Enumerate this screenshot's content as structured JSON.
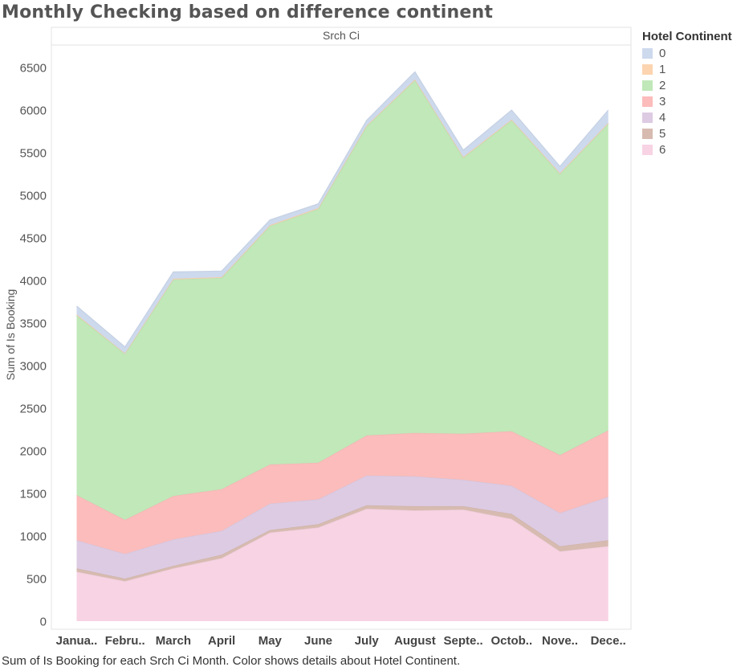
{
  "page_title": "Monthly Checking based on difference continent",
  "caption": "Sum of Is Booking for each Srch Ci Month.  Color shows details about Hotel Continent.",
  "chart_data": {
    "type": "area",
    "stacked": true,
    "title": "Monthly Checking based on difference continent",
    "column_header": "Srch Ci",
    "ylabel": "Sum of Is Booking",
    "xlabel": "",
    "ylim": [
      0,
      6800
    ],
    "yticks": [
      0,
      500,
      1000,
      1500,
      2000,
      2500,
      3000,
      3500,
      4000,
      4500,
      5000,
      5500,
      6000,
      6500
    ],
    "categories": [
      "Janua..",
      "Febru..",
      "March",
      "April",
      "May",
      "June",
      "July",
      "August",
      "Septe..",
      "Octob..",
      "Nove..",
      "Dece.."
    ],
    "legend_title": "Hotel Continent",
    "legend_position": "right",
    "grid": false,
    "series": [
      {
        "name": "6",
        "color": "#f7d3e3",
        "values": [
          580,
          470,
          620,
          740,
          1040,
          1100,
          1320,
          1300,
          1310,
          1200,
          820,
          880
        ]
      },
      {
        "name": "5",
        "color": "#d7bbb0",
        "values": [
          40,
          30,
          30,
          40,
          30,
          40,
          40,
          50,
          40,
          60,
          60,
          70
        ]
      },
      {
        "name": "4",
        "color": "#ddcbe3",
        "values": [
          330,
          290,
          310,
          280,
          310,
          290,
          350,
          350,
          310,
          330,
          390,
          510
        ]
      },
      {
        "name": "3",
        "color": "#fbbcbb",
        "values": [
          530,
          400,
          510,
          490,
          460,
          430,
          470,
          510,
          540,
          640,
          680,
          780
        ]
      },
      {
        "name": "2",
        "color": "#c0e8b8",
        "values": [
          2110,
          1950,
          2540,
          2480,
          2800,
          2980,
          3630,
          4140,
          3240,
          3650,
          3300,
          3600
        ]
      },
      {
        "name": "1",
        "color": "#fcd4b0",
        "values": [
          10,
          5,
          10,
          10,
          10,
          10,
          10,
          10,
          10,
          10,
          10,
          10
        ]
      },
      {
        "name": "0",
        "color": "#cdd9ed",
        "values": [
          100,
          75,
          80,
          70,
          60,
          50,
          60,
          90,
          80,
          110,
          80,
          150
        ]
      }
    ]
  }
}
